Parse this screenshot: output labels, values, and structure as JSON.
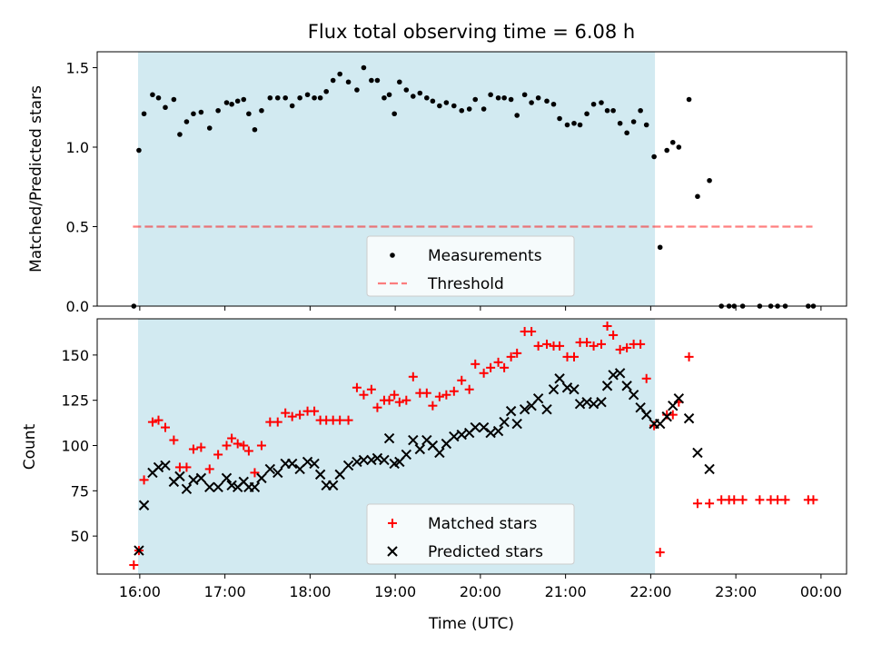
{
  "chart_data": {
    "type": "scatter",
    "title": "Flux total observing time = 6.08 h",
    "xlabel": "Time (UTC)",
    "x_tick_labels": [
      "16:00",
      "17:00",
      "18:00",
      "19:00",
      "20:00",
      "21:00",
      "22:00",
      "23:00",
      "00:00"
    ],
    "x_tick_hours": [
      16,
      17,
      18,
      19,
      20,
      21,
      22,
      23,
      24
    ],
    "xlim_hours": [
      15.5,
      24.3
    ],
    "observing_window_hours": [
      15.98,
      22.05
    ],
    "observing_window_color": "#add8e6",
    "top": {
      "ylabel": "Matched/Predicted stars",
      "ylim": [
        0,
        1.6
      ],
      "y_ticks": [
        0,
        0.5,
        1.0,
        1.5
      ],
      "y_tick_labels": [
        "0.0",
        "0.5",
        "1.0",
        "1.5"
      ],
      "legend": [
        "Measurements",
        "Threshold"
      ],
      "legend_position": "lower center",
      "threshold": {
        "value": 0.5,
        "x_range": [
          15.92,
          23.9
        ],
        "color": "#ff0000",
        "opacity": 0.5,
        "style": "dashed"
      },
      "measurements": {
        "color": "#000000",
        "x": [
          15.93,
          15.99,
          16.05,
          16.15,
          16.22,
          16.3,
          16.4,
          16.47,
          16.55,
          16.63,
          16.72,
          16.82,
          16.92,
          17.02,
          17.08,
          17.15,
          17.22,
          17.28,
          17.35,
          17.43,
          17.53,
          17.62,
          17.71,
          17.79,
          17.88,
          17.97,
          18.05,
          18.12,
          18.19,
          18.27,
          18.35,
          18.45,
          18.55,
          18.63,
          18.72,
          18.79,
          18.87,
          18.93,
          18.99,
          19.05,
          19.13,
          19.21,
          19.29,
          19.37,
          19.44,
          19.52,
          19.6,
          19.69,
          19.78,
          19.87,
          19.94,
          20.04,
          20.12,
          20.21,
          20.28,
          20.36,
          20.43,
          20.52,
          20.6,
          20.68,
          20.78,
          20.86,
          20.93,
          21.02,
          21.1,
          21.17,
          21.25,
          21.33,
          21.42,
          21.49,
          21.56,
          21.64,
          21.72,
          21.8,
          21.88,
          21.95,
          22.04,
          22.11,
          22.19,
          22.26,
          22.33,
          22.45,
          22.55,
          22.69,
          22.83,
          22.92,
          22.98,
          23.08,
          23.28,
          23.41,
          23.49,
          23.58,
          23.85,
          23.91
        ],
        "y": [
          0.0,
          0.98,
          1.21,
          1.33,
          1.31,
          1.25,
          1.3,
          1.08,
          1.16,
          1.21,
          1.22,
          1.12,
          1.23,
          1.28,
          1.27,
          1.29,
          1.3,
          1.21,
          1.11,
          1.23,
          1.31,
          1.31,
          1.31,
          1.26,
          1.31,
          1.33,
          1.31,
          1.31,
          1.35,
          1.42,
          1.46,
          1.41,
          1.36,
          1.5,
          1.42,
          1.42,
          1.31,
          1.33,
          1.21,
          1.41,
          1.36,
          1.32,
          1.34,
          1.31,
          1.29,
          1.26,
          1.28,
          1.26,
          1.23,
          1.24,
          1.3,
          1.24,
          1.33,
          1.31,
          1.31,
          1.3,
          1.2,
          1.33,
          1.28,
          1.31,
          1.29,
          1.27,
          1.18,
          1.14,
          1.15,
          1.14,
          1.21,
          1.27,
          1.28,
          1.23,
          1.23,
          1.15,
          1.09,
          1.16,
          1.23,
          1.14,
          0.94,
          0.37,
          0.98,
          1.03,
          1.0,
          1.3,
          0.69,
          0.79,
          0.0,
          0.0,
          0.0,
          0.0,
          0.0,
          0.0,
          0.0,
          0.0,
          0.0,
          0.0
        ]
      }
    },
    "bottom": {
      "ylabel": "Count",
      "ylim": [
        29,
        170
      ],
      "y_ticks": [
        50,
        75,
        100,
        125,
        150
      ],
      "y_tick_labels": [
        "50",
        "75",
        "100",
        "125",
        "150"
      ],
      "legend": [
        "Matched stars",
        "Predicted stars"
      ],
      "legend_position": "lower center",
      "series": [
        {
          "name": "Matched stars",
          "marker": "+",
          "color": "#ff0000",
          "x": [
            15.93,
            15.99,
            16.05,
            16.15,
            16.22,
            16.3,
            16.4,
            16.47,
            16.55,
            16.63,
            16.72,
            16.82,
            16.92,
            17.02,
            17.08,
            17.15,
            17.22,
            17.28,
            17.35,
            17.43,
            17.53,
            17.62,
            17.71,
            17.79,
            17.88,
            17.97,
            18.05,
            18.12,
            18.19,
            18.27,
            18.35,
            18.45,
            18.55,
            18.63,
            18.72,
            18.79,
            18.87,
            18.93,
            18.99,
            19.05,
            19.13,
            19.21,
            19.29,
            19.37,
            19.44,
            19.52,
            19.6,
            19.69,
            19.78,
            19.87,
            19.94,
            20.04,
            20.12,
            20.21,
            20.28,
            20.36,
            20.43,
            20.52,
            20.6,
            20.68,
            20.78,
            20.86,
            20.93,
            21.02,
            21.1,
            21.17,
            21.25,
            21.33,
            21.42,
            21.49,
            21.56,
            21.64,
            21.72,
            21.8,
            21.88,
            21.95,
            22.04,
            22.11,
            22.19,
            22.26,
            22.33,
            22.45,
            22.55,
            22.69,
            22.83,
            22.92,
            22.98,
            23.08,
            23.28,
            23.41,
            23.49,
            23.58,
            23.85,
            23.91
          ],
          "y": [
            34,
            42,
            81,
            113,
            114,
            110,
            103,
            88,
            88,
            98,
            99,
            87,
            95,
            100,
            104,
            101,
            100,
            97,
            85,
            100,
            113,
            113,
            118,
            116,
            117,
            119,
            119,
            114,
            114,
            114,
            114,
            114,
            132,
            128,
            131,
            121,
            125,
            125,
            128,
            124,
            125,
            138,
            129,
            129,
            122,
            127,
            128,
            130,
            136,
            131,
            145,
            140,
            143,
            146,
            143,
            149,
            151,
            163,
            163,
            155,
            156,
            155,
            155,
            149,
            149,
            157,
            157,
            155,
            156,
            166,
            161,
            153,
            154,
            156,
            156,
            137,
            111,
            41,
            117,
            117,
            124,
            149,
            68,
            68,
            70,
            70,
            70,
            70,
            70,
            70,
            70,
            70,
            70,
            70
          ]
        },
        {
          "name": "Predicted stars",
          "marker": "x",
          "color": "#000000",
          "x": [
            15.99,
            16.05,
            16.15,
            16.22,
            16.3,
            16.4,
            16.47,
            16.55,
            16.63,
            16.72,
            16.82,
            16.92,
            17.02,
            17.08,
            17.15,
            17.22,
            17.28,
            17.35,
            17.43,
            17.53,
            17.62,
            17.71,
            17.79,
            17.88,
            17.97,
            18.05,
            18.12,
            18.19,
            18.27,
            18.35,
            18.45,
            18.55,
            18.63,
            18.72,
            18.79,
            18.87,
            18.93,
            18.99,
            19.05,
            19.13,
            19.21,
            19.29,
            19.37,
            19.44,
            19.52,
            19.6,
            19.69,
            19.78,
            19.87,
            19.94,
            20.04,
            20.12,
            20.21,
            20.28,
            20.36,
            20.43,
            20.52,
            20.6,
            20.68,
            20.78,
            20.86,
            20.93,
            21.02,
            21.1,
            21.17,
            21.25,
            21.33,
            21.42,
            21.49,
            21.56,
            21.64,
            21.72,
            21.8,
            21.88,
            21.95,
            22.04,
            22.11,
            22.19,
            22.26,
            22.33,
            22.45,
            22.55,
            22.69
          ],
          "y": [
            42,
            67,
            85,
            88,
            89,
            80,
            83,
            76,
            81,
            82,
            77,
            77,
            82,
            78,
            77,
            80,
            77,
            77,
            82,
            87,
            85,
            90,
            90,
            87,
            91,
            90,
            84,
            78,
            78,
            84,
            89,
            91,
            92,
            92,
            93,
            92,
            104,
            90,
            91,
            95,
            103,
            98,
            103,
            100,
            96,
            101,
            105,
            106,
            107,
            110,
            110,
            107,
            108,
            113,
            119,
            112,
            120,
            122,
            126,
            120,
            131,
            137,
            132,
            131,
            123,
            124,
            123,
            124,
            133,
            139,
            140,
            133,
            128,
            121,
            117,
            112,
            112,
            116,
            122,
            126,
            115,
            96,
            87
          ]
        }
      ]
    }
  }
}
